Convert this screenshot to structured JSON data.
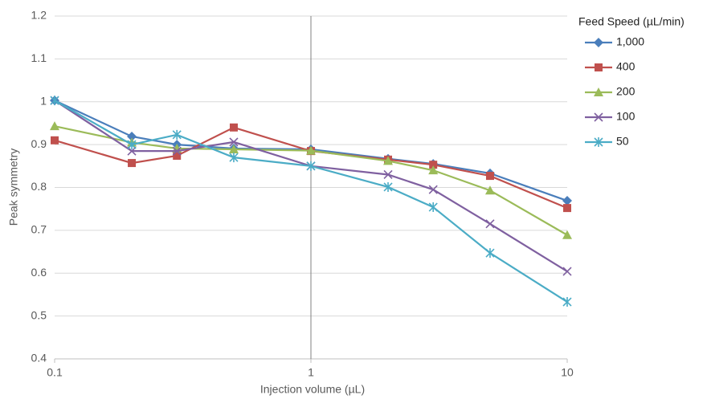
{
  "chart_data": {
    "type": "line",
    "x_label": "Injection volume (µL)",
    "y_label": "Peak symmetry",
    "legend_title": "Feed Speed (µL/min)",
    "legend": "right",
    "x_log": true,
    "grid": true,
    "y_axis_crosses_at": 1,
    "x": [
      0.1,
      0.2,
      0.3,
      0.5,
      1,
      2,
      3,
      5,
      10
    ],
    "xlim": [
      0.1,
      10
    ],
    "xticks": [
      0.1,
      1,
      10
    ],
    "ylim": [
      0.4,
      1.2
    ],
    "yticks": [
      0.4,
      0.5,
      0.6,
      0.7,
      0.8,
      0.9,
      1,
      1.1,
      1.2
    ],
    "series": [
      {
        "name": "1,000",
        "color": "#4a7ebb",
        "marker": "diamond",
        "values": [
          1.003,
          0.919,
          0.9,
          0.891,
          0.889,
          0.867,
          0.855,
          0.833,
          0.769
        ]
      },
      {
        "name": "400",
        "color": "#c0504d",
        "marker": "square",
        "values": [
          0.91,
          0.857,
          0.874,
          0.94,
          0.885,
          0.865,
          0.853,
          0.827,
          0.752
        ]
      },
      {
        "name": "200",
        "color": "#9bbb59",
        "marker": "triangle",
        "values": [
          0.943,
          0.905,
          0.891,
          0.889,
          0.886,
          0.862,
          0.84,
          0.793,
          0.689
        ]
      },
      {
        "name": "100",
        "color": "#7f60a0",
        "marker": "x",
        "values": [
          1.003,
          0.885,
          0.885,
          0.906,
          0.85,
          0.83,
          0.795,
          0.715,
          0.604
        ]
      },
      {
        "name": "50",
        "color": "#4bacc6",
        "marker": "star",
        "values": [
          1.003,
          0.9,
          0.923,
          0.87,
          0.85,
          0.801,
          0.754,
          0.647,
          0.533
        ]
      }
    ]
  }
}
